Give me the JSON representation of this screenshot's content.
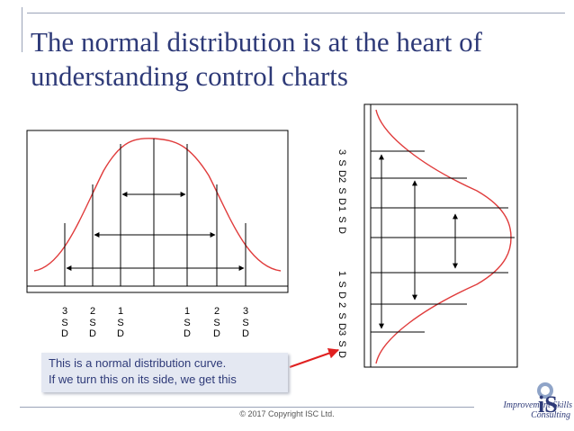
{
  "title": "The normal distribution is at the heart of understanding control charts",
  "horizontal_labels": [
    {
      "num": "3",
      "s": "S",
      "d": "D"
    },
    {
      "num": "2",
      "s": "S",
      "d": "D"
    },
    {
      "num": "1",
      "s": "S",
      "d": "D"
    },
    {
      "num": "1",
      "s": "S",
      "d": "D"
    },
    {
      "num": "2",
      "s": "S",
      "d": "D"
    },
    {
      "num": "3",
      "s": "S",
      "d": "D"
    }
  ],
  "vertical_labels": [
    {
      "num": "3",
      "s": "S",
      "d": "D"
    },
    {
      "num": "2",
      "s": "S",
      "d": "D"
    },
    {
      "num": "1",
      "s": "S",
      "d": "D"
    },
    {
      "num": "1",
      "s": "S",
      "d": "D"
    },
    {
      "num": "2",
      "s": "S",
      "d": "D"
    },
    {
      "num": "3",
      "s": "S",
      "d": "D"
    }
  ],
  "callout": {
    "line1": "This is a normal distribution curve.",
    "line2": "If we turn this on its side, we get this"
  },
  "copyright": "© 2017 Copyright ISC Ltd.",
  "logo": {
    "mark": "iS",
    "name": "Improvement Skills",
    "sub": "Consulting"
  },
  "colors": {
    "title": "#2e3a78",
    "curve": "#e03c3c",
    "callout_bg": "#e4e8f2",
    "arrow": "#e02020"
  }
}
